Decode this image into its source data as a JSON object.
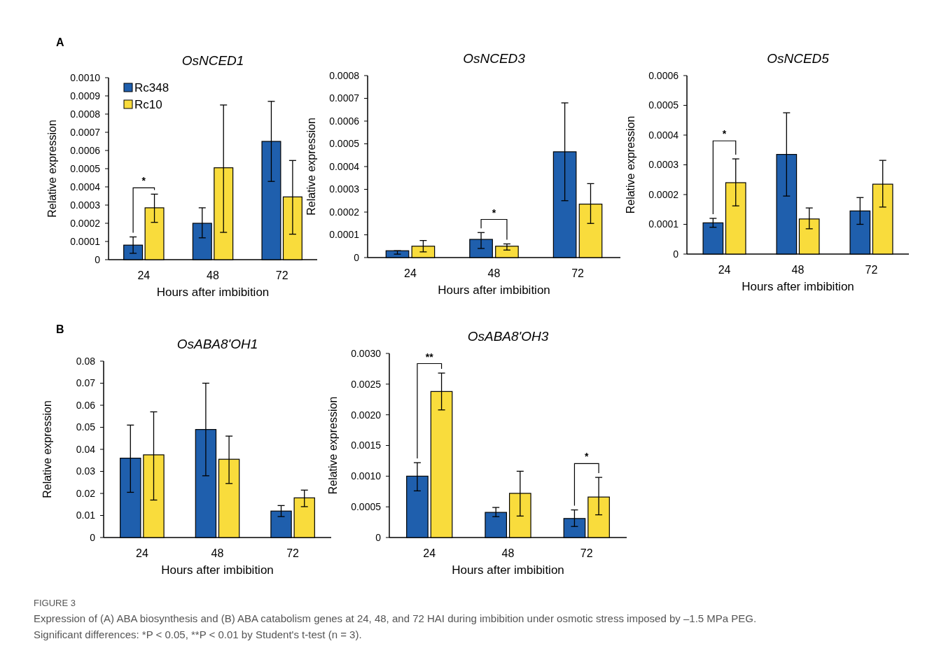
{
  "chart_data": [
    {
      "type": "bar",
      "title": "OsNCED1",
      "xlabel": "Hours after imbibition",
      "ylabel": "Relative expression",
      "categories": [
        "24",
        "48",
        "72"
      ],
      "ylim": [
        0,
        0.001
      ],
      "yticks": [
        0,
        0.0001,
        0.0002,
        0.0003,
        0.0004,
        0.0005,
        0.0006,
        0.0007,
        0.0008,
        0.0009,
        {
          "value": 0.001,
          "label": "0.0010"
        }
      ],
      "legend": "top left",
      "grid": false,
      "series": [
        {
          "name": "Rc348",
          "color": "#1f5fad",
          "values": [
            8e-05,
            0.0002,
            0.00065
          ],
          "errors": [
            [
              3.5e-05,
              0.000125
            ],
            [
              0.00012,
              0.000285
            ],
            [
              0.00043,
              0.00087
            ]
          ]
        },
        {
          "name": "Rc10",
          "color": "#f9dc3c",
          "values": [
            0.000285,
            0.000505,
            0.000345
          ],
          "errors": [
            [
              0.000205,
              0.00036
            ],
            [
              0.00015,
              0.00085
            ],
            [
              0.00014,
              0.000545
            ]
          ]
        }
      ],
      "annotations": [
        "A",
        "*"
      ]
    },
    {
      "type": "bar",
      "title": "OsNCED3",
      "xlabel": "Hours after imbibition",
      "ylabel": "Relative expression",
      "categories": [
        "24",
        "48",
        "72"
      ],
      "ylim": [
        0,
        0.0008
      ],
      "yticks": [
        0,
        0.0001,
        0.0002,
        0.0003,
        0.0004,
        0.0005,
        0.0006,
        0.0007,
        0.0008
      ],
      "grid": false,
      "series": [
        {
          "color": "#1f5fad",
          "values": [
            3e-05,
            8e-05,
            0.000465
          ],
          "errors": [
            [
              1.5e-05,
              3e-05
            ],
            [
              4e-05,
              0.00011
            ],
            [
              0.00025,
              0.00068
            ]
          ]
        },
        {
          "color": "#f9dc3c",
          "values": [
            5e-05,
            5e-05,
            0.000235
          ],
          "errors": [
            [
              2.5e-05,
              7.5e-05
            ],
            [
              3.3e-05,
              6e-05
            ],
            [
              0.00015,
              0.000325
            ]
          ]
        }
      ],
      "annotations": [
        "*"
      ]
    },
    {
      "type": "bar",
      "title": "OsNCED5",
      "xlabel": "Hours after imbibition",
      "ylabel": "Relative expression",
      "categories": [
        "24",
        "48",
        "72"
      ],
      "ylim": [
        0,
        0.0006
      ],
      "yticks": [
        0,
        0.0001,
        0.0002,
        0.0003,
        0.0004,
        0.0005,
        0.0006
      ],
      "grid": false,
      "series": [
        {
          "color": "#1f5fad",
          "values": [
            0.000105,
            0.000335,
            0.000145
          ],
          "errors": [
            [
              9e-05,
              0.00012
            ],
            [
              0.000195,
              0.000475
            ],
            [
              0.0001,
              0.00019
            ]
          ]
        },
        {
          "color": "#f9dc3c",
          "values": [
            0.00024,
            0.000118,
            0.000235
          ],
          "errors": [
            [
              0.000162,
              0.00032
            ],
            [
              8.5e-05,
              0.000155
            ],
            [
              0.000158,
              0.000315
            ]
          ]
        }
      ],
      "annotations": [
        "*"
      ]
    },
    {
      "type": "bar",
      "title": "OsABA8'OH1",
      "xlabel": "Hours after imbibition",
      "ylabel": "Relative expression",
      "categories": [
        "24",
        "48",
        "72"
      ],
      "ylim": [
        0,
        0.08
      ],
      "yticks": [
        0,
        0.01,
        0.02,
        0.03,
        0.04,
        0.05,
        0.06,
        0.07,
        0.08
      ],
      "grid": false,
      "series": [
        {
          "color": "#1f5fad",
          "values": [
            0.036,
            0.049,
            0.012
          ],
          "errors": [
            [
              0.0205,
              0.051
            ],
            [
              0.028,
              0.07
            ],
            [
              0.0095,
              0.0145
            ]
          ]
        },
        {
          "color": "#f9dc3c",
          "values": [
            0.0375,
            0.0355,
            0.018
          ],
          "errors": [
            [
              0.017,
              0.057
            ],
            [
              0.0245,
              0.046
            ],
            [
              0.014,
              0.0215
            ]
          ]
        }
      ],
      "annotations": [
        "B"
      ]
    },
    {
      "type": "bar",
      "title": "OsABA8'OH3",
      "xlabel": "Hours after imbibition",
      "ylabel": "Relative expression",
      "categories": [
        "24",
        "48",
        "72"
      ],
      "ylim": [
        0,
        0.003
      ],
      "yticks": [
        0,
        0.0005,
        {
          "value": 0.001,
          "label": "0.0010"
        },
        0.0015,
        {
          "value": 0.002,
          "label": "0.0020"
        },
        0.0025,
        {
          "value": 0.003,
          "label": "0.0030"
        }
      ],
      "grid": false,
      "series": [
        {
          "color": "#1f5fad",
          "values": [
            0.001,
            0.00041,
            0.00031
          ],
          "errors": [
            [
              0.00076,
              0.00122
            ],
            [
              0.00034,
              0.00049
            ],
            [
              0.00018,
              0.00045
            ]
          ]
        },
        {
          "color": "#f9dc3c",
          "values": [
            0.00238,
            0.00072,
            0.00066
          ],
          "errors": [
            [
              0.00208,
              0.00268
            ],
            [
              0.00035,
              0.00108
            ],
            [
              0.00037,
              0.00098
            ]
          ]
        }
      ],
      "annotations": [
        "**",
        "*",
        "FIGURE 3",
        "Expression of (A) ABA biosynthesis and (B) ABA catabolism genes at 24, 48, and 72 HAI during imbibition under osmotic stress imposed by –1.5 MPa PEG. Significant differences: *P < 0.05, **P < 0.01 by Student's t-test (n = 3)."
      ]
    }
  ]
}
